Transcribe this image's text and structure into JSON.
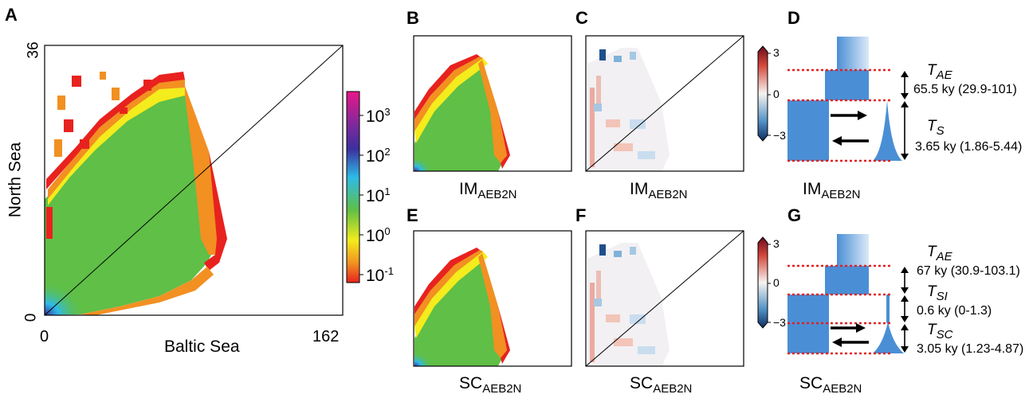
{
  "panels": {
    "A": {
      "label": "A",
      "y_axis_title": "North Sea",
      "x_axis_title": "Baltic Sea",
      "y_max": "36",
      "y_min": "0",
      "x_min": "0",
      "x_max": "162",
      "colorbar": {
        "base": "10",
        "exponents": [
          "3",
          "2",
          "1",
          "0",
          "-1"
        ],
        "colors": [
          "#e8168b",
          "#3c2f9e",
          "#2ebbe7",
          "#5fbf46",
          "#f4ec1c",
          "#f29022",
          "#e8221e"
        ]
      }
    },
    "B": {
      "label": "B",
      "caption_main": "IM",
      "caption_sub": "AEB2N"
    },
    "C": {
      "label": "C",
      "caption_main": "IM",
      "caption_sub": "AEB2N",
      "residual_ticks": [
        "3",
        "0",
        "−3"
      ]
    },
    "D": {
      "label": "D",
      "caption_main": "IM",
      "caption_sub": "AEB2N",
      "t1_main": "T",
      "t1_sub": "AE",
      "t1_value": "65.5  ky (29.9-101)",
      "t2_main": "T",
      "t2_sub": "S",
      "t2_value": "3.65 ky (1.86-5.44)"
    },
    "E": {
      "label": "E",
      "caption_main": "SC",
      "caption_sub": "AEB2N"
    },
    "F": {
      "label": "F",
      "caption_main": "SC",
      "caption_sub": "AEB2N",
      "residual_ticks": [
        "3",
        "0",
        "−3"
      ]
    },
    "G": {
      "label": "G",
      "caption_main": "SC",
      "caption_sub": "AEB2N",
      "t1_main": "T",
      "t1_sub": "AE",
      "t1_value": "67 ky (30.9-103.1)",
      "t2_main": "T",
      "t2_sub": "SI",
      "t2_value": "0.6 ky (0-1.3)",
      "t3_main": "T",
      "t3_sub": "SC",
      "t3_value": "3.05 ky (1.23-4.87)"
    }
  },
  "colors": {
    "population": "#4a8fd6",
    "divider": "#e02020",
    "arrow": "#000000"
  }
}
